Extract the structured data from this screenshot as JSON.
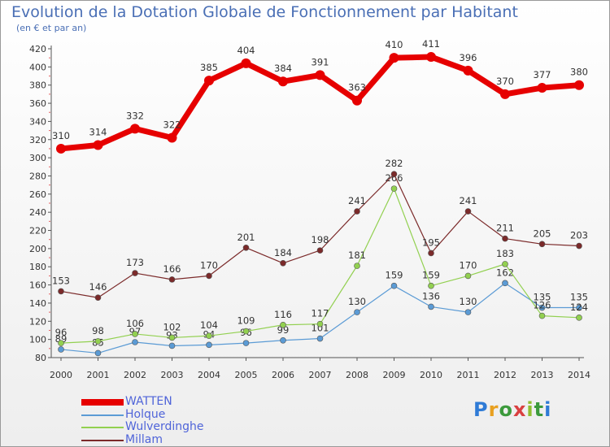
{
  "chart_data": {
    "type": "line",
    "title": "Evolution de la Dotation Globale de Fonctionnement par Habitant",
    "subtitle": "(en € et par an)",
    "xlabel": "",
    "ylabel": "",
    "categories": [
      "2000",
      "2001",
      "2002",
      "2003",
      "2004",
      "2005",
      "2006",
      "2007",
      "2008",
      "2009",
      "2010",
      "2011",
      "2012",
      "2013",
      "2014"
    ],
    "ylim": [
      80,
      420
    ],
    "yticks": [
      80,
      100,
      120,
      140,
      160,
      180,
      200,
      220,
      240,
      260,
      280,
      300,
      320,
      340,
      360,
      380,
      400,
      420
    ],
    "grid": false,
    "legend": "bottom-left",
    "series": [
      {
        "name": "WATTEN",
        "color": "#e60000",
        "values": [
          310,
          314,
          332,
          322,
          385,
          404,
          384,
          391,
          363,
          410,
          411,
          396,
          370,
          377,
          380
        ]
      },
      {
        "name": "Holque",
        "color": "#5b9bd5",
        "values": [
          89,
          85,
          97,
          93,
          94,
          96,
          99,
          101,
          130,
          159,
          136,
          130,
          162,
          135,
          135
        ]
      },
      {
        "name": "Wulverdinghe",
        "color": "#92d050",
        "values": [
          96,
          98,
          106,
          102,
          104,
          109,
          116,
          117,
          181,
          266,
          159,
          170,
          183,
          126,
          124
        ]
      },
      {
        "name": "Millam",
        "color": "#7b2a2a",
        "values": [
          153,
          146,
          173,
          166,
          170,
          201,
          184,
          198,
          241,
          282,
          195,
          241,
          211,
          205,
          203
        ]
      }
    ]
  },
  "logo": {
    "text": "Proxiti",
    "letters": [
      "P",
      "r",
      "o",
      "x",
      "i",
      "t",
      "i"
    ]
  }
}
